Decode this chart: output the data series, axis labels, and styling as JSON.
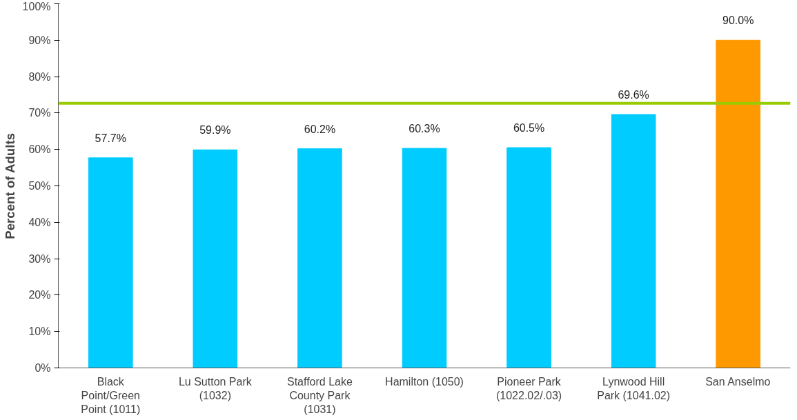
{
  "chart_data": {
    "type": "bar",
    "ylabel": "Percent of Adults",
    "categories": [
      "Black Point/Green Point (1011)",
      "Lu Sutton Park (1032)",
      "Stafford Lake County Park (1031)",
      "Hamilton (1050)",
      "Pioneer Park (1022.02/.03)",
      "Lynwood Hill Park (1041.02)",
      "San Anselmo"
    ],
    "values": [
      57.7,
      59.9,
      60.2,
      60.3,
      60.5,
      69.6,
      90.0
    ],
    "value_labels": [
      "57.7%",
      "59.9%",
      "60.2%",
      "60.3%",
      "60.5%",
      "69.6%",
      "90.0%"
    ],
    "colors": [
      "#00ccff",
      "#00ccff",
      "#00ccff",
      "#00ccff",
      "#00ccff",
      "#00ccff",
      "#ff9900"
    ],
    "ylim": [
      0,
      100
    ],
    "yticks": [
      {
        "value": 0,
        "label": "0%"
      },
      {
        "value": 10,
        "label": "10%"
      },
      {
        "value": 20,
        "label": "20%"
      },
      {
        "value": 30,
        "label": "30%"
      },
      {
        "value": 40,
        "label": "40%"
      },
      {
        "value": 50,
        "label": "50%"
      },
      {
        "value": 60,
        "label": "60%"
      },
      {
        "value": 70,
        "label": "70%"
      },
      {
        "value": 80,
        "label": "80%"
      },
      {
        "value": 90,
        "label": "90%"
      },
      {
        "value": 100,
        "label": "100%"
      }
    ],
    "ref_lines": [
      {
        "axis": "y",
        "value": 72.7,
        "label": null,
        "color": "#99cc00"
      }
    ],
    "grid": false
  }
}
